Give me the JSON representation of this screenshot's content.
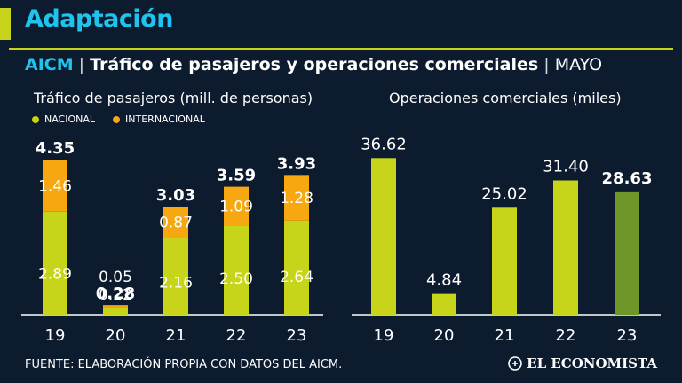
{
  "app": {
    "title": "Adaptación"
  },
  "headline": {
    "brand": "AICM",
    "separator": "|",
    "title": "Tráfico de pasajeros y operaciones comerciales",
    "month": "MAYO"
  },
  "colors": {
    "nacional": "#c6d51a",
    "internacional": "#f7a70f",
    "highlight": "#6e9628",
    "accent": "#1ec4ee",
    "background": "#0d1b2e"
  },
  "legend": {
    "nacional": "NACIONAL",
    "internacional": "INTERNACIONAL"
  },
  "chart_data": [
    {
      "type": "bar",
      "stacked": true,
      "title": "Tráfico de pasajeros (mill. de personas)",
      "categories": [
        "19",
        "20",
        "21",
        "22",
        "23"
      ],
      "series": [
        {
          "name": "NACIONAL",
          "values": [
            2.89,
            0.22,
            2.16,
            2.5,
            2.64
          ],
          "labels": [
            "2.89",
            "0.22",
            "2.16",
            "2.50",
            "2.64"
          ]
        },
        {
          "name": "INTERNACIONAL",
          "values": [
            1.46,
            0.05,
            0.87,
            1.09,
            1.28
          ],
          "labels": [
            "1.46",
            "0.05",
            "0.87",
            "1.09",
            "1.28"
          ]
        }
      ],
      "totals": [
        "4.35",
        "0.28",
        "3.03",
        "3.59",
        "3.93"
      ],
      "ylim": [
        0,
        4.6
      ]
    },
    {
      "type": "bar",
      "title": "Operaciones comerciales (miles)",
      "categories": [
        "19",
        "20",
        "21",
        "22",
        "23"
      ],
      "values": [
        36.62,
        4.84,
        25.02,
        31.4,
        28.63
      ],
      "labels": [
        "36.62",
        "4.84",
        "25.02",
        "31.40",
        "28.63"
      ],
      "highlight_index": 4,
      "ylim": [
        0,
        40
      ]
    }
  ],
  "footer": {
    "source": "FUENTE: ELABORACIÓN PROPIA CON DATOS DEL AICM.",
    "logo": "EL ECONOMISTA"
  }
}
